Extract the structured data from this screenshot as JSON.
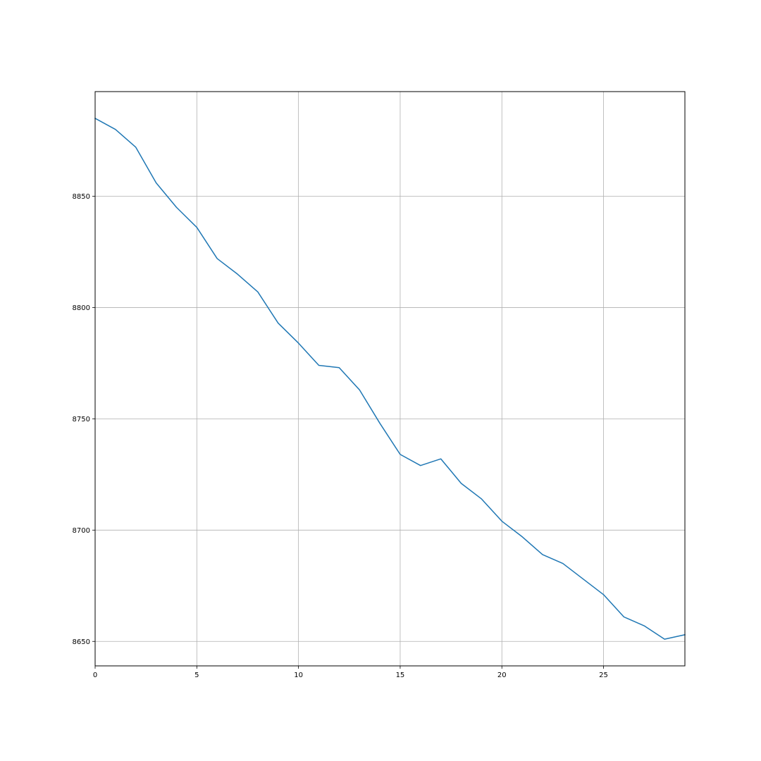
{
  "chart_data": {
    "type": "line",
    "title": "",
    "xlabel": "",
    "ylabel": "",
    "xlim": [
      0,
      29
    ],
    "ylim": [
      8639,
      8897
    ],
    "grid": true,
    "x_ticks": [
      0,
      5,
      10,
      15,
      20,
      25
    ],
    "y_ticks": [
      8650,
      8700,
      8750,
      8800,
      8850
    ],
    "series": [
      {
        "color": "#1f77b4",
        "x": [
          0,
          1,
          2,
          3,
          4,
          5,
          6,
          7,
          8,
          9,
          10,
          11,
          12,
          13,
          14,
          15,
          16,
          17,
          18,
          19,
          20,
          21,
          22,
          23,
          24,
          25,
          26,
          27,
          28,
          29
        ],
        "y": [
          8885,
          8880,
          8872,
          8856,
          8845,
          8836,
          8822,
          8815,
          8807,
          8793,
          8784,
          8774,
          8773,
          8763,
          8748,
          8734,
          8729,
          8732,
          8721,
          8714,
          8704,
          8697,
          8689,
          8685,
          8678,
          8671,
          8661,
          8657,
          8651,
          8653
        ]
      }
    ]
  }
}
